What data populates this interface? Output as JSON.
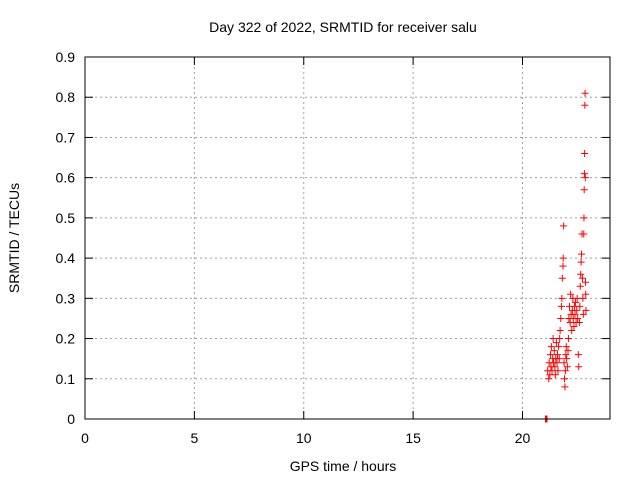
{
  "chart_data": {
    "type": "scatter",
    "title": "Day 322 of 2022, SRMTID for receiver salu",
    "xlabel": "GPS time / hours",
    "ylabel": "SRMTID / TECUs",
    "xlim": [
      0,
      24
    ],
    "ylim": [
      0,
      0.9
    ],
    "xticks": [
      0,
      5,
      10,
      15,
      20
    ],
    "yticks": [
      0,
      0.1,
      0.2,
      0.3,
      0.4,
      0.5,
      0.6,
      0.7,
      0.8,
      0.9
    ],
    "xtick_labels": [
      "0",
      "5",
      "10",
      "15",
      "20"
    ],
    "ytick_labels": [
      "0",
      "0.1",
      "0.2",
      "0.3",
      "0.4",
      "0.5",
      "0.6",
      "0.7",
      "0.8",
      "0.9"
    ],
    "grid": true,
    "legend": "none",
    "marker": "+",
    "color": "#ff0000",
    "series": [
      {
        "points": [
          [
            21.05,
            0.0
          ],
          [
            21.08,
            0.0
          ],
          [
            21.1,
            0.0
          ],
          [
            21.12,
            0.0
          ],
          [
            21.15,
            0.12
          ],
          [
            21.2,
            0.1
          ],
          [
            21.22,
            0.14
          ],
          [
            21.25,
            0.11
          ],
          [
            21.28,
            0.16
          ],
          [
            21.3,
            0.13
          ],
          [
            21.32,
            0.18
          ],
          [
            21.35,
            0.12
          ],
          [
            21.38,
            0.15
          ],
          [
            21.4,
            0.2
          ],
          [
            21.42,
            0.14
          ],
          [
            21.45,
            0.17
          ],
          [
            21.48,
            0.13
          ],
          [
            21.5,
            0.11
          ],
          [
            21.52,
            0.15
          ],
          [
            21.55,
            0.19
          ],
          [
            21.58,
            0.14
          ],
          [
            21.6,
            0.16
          ],
          [
            21.62,
            0.12
          ],
          [
            21.65,
            0.18
          ],
          [
            21.68,
            0.15
          ],
          [
            21.7,
            0.2
          ],
          [
            21.72,
            0.22
          ],
          [
            21.75,
            0.25
          ],
          [
            21.78,
            0.28
          ],
          [
            21.8,
            0.3
          ],
          [
            21.82,
            0.35
          ],
          [
            21.85,
            0.38
          ],
          [
            21.86,
            0.4
          ],
          [
            21.88,
            0.48
          ],
          [
            21.9,
            0.14
          ],
          [
            21.92,
            0.1
          ],
          [
            21.94,
            0.08
          ],
          [
            21.96,
            0.12
          ],
          [
            21.98,
            0.16
          ],
          [
            22.0,
            0.18
          ],
          [
            22.02,
            0.15
          ],
          [
            22.05,
            0.13
          ],
          [
            22.08,
            0.17
          ],
          [
            22.1,
            0.2
          ],
          [
            22.12,
            0.25
          ],
          [
            22.15,
            0.28
          ],
          [
            22.18,
            0.24
          ],
          [
            22.2,
            0.31
          ],
          [
            22.22,
            0.26
          ],
          [
            22.25,
            0.22
          ],
          [
            22.28,
            0.27
          ],
          [
            22.3,
            0.3
          ],
          [
            22.32,
            0.25
          ],
          [
            22.35,
            0.23
          ],
          [
            22.38,
            0.28
          ],
          [
            22.4,
            0.26
          ],
          [
            22.42,
            0.29
          ],
          [
            22.45,
            0.24
          ],
          [
            22.48,
            0.27
          ],
          [
            22.5,
            0.3
          ],
          [
            22.52,
            0.25
          ],
          [
            22.55,
            0.16
          ],
          [
            22.57,
            0.13
          ],
          [
            22.6,
            0.24
          ],
          [
            22.62,
            0.28
          ],
          [
            22.64,
            0.33
          ],
          [
            22.66,
            0.36
          ],
          [
            22.68,
            0.39
          ],
          [
            22.7,
            0.41
          ],
          [
            22.72,
            0.46
          ],
          [
            22.74,
            0.35
          ],
          [
            22.76,
            0.3
          ],
          [
            22.78,
            0.26
          ],
          [
            22.8,
            0.46
          ],
          [
            22.81,
            0.5
          ],
          [
            22.82,
            0.57
          ],
          [
            22.83,
            0.61
          ],
          [
            22.84,
            0.66
          ],
          [
            22.85,
            0.78
          ],
          [
            22.86,
            0.81
          ],
          [
            22.87,
            0.6
          ],
          [
            22.88,
            0.34
          ],
          [
            22.89,
            0.31
          ],
          [
            22.9,
            0.27
          ]
        ]
      }
    ]
  }
}
